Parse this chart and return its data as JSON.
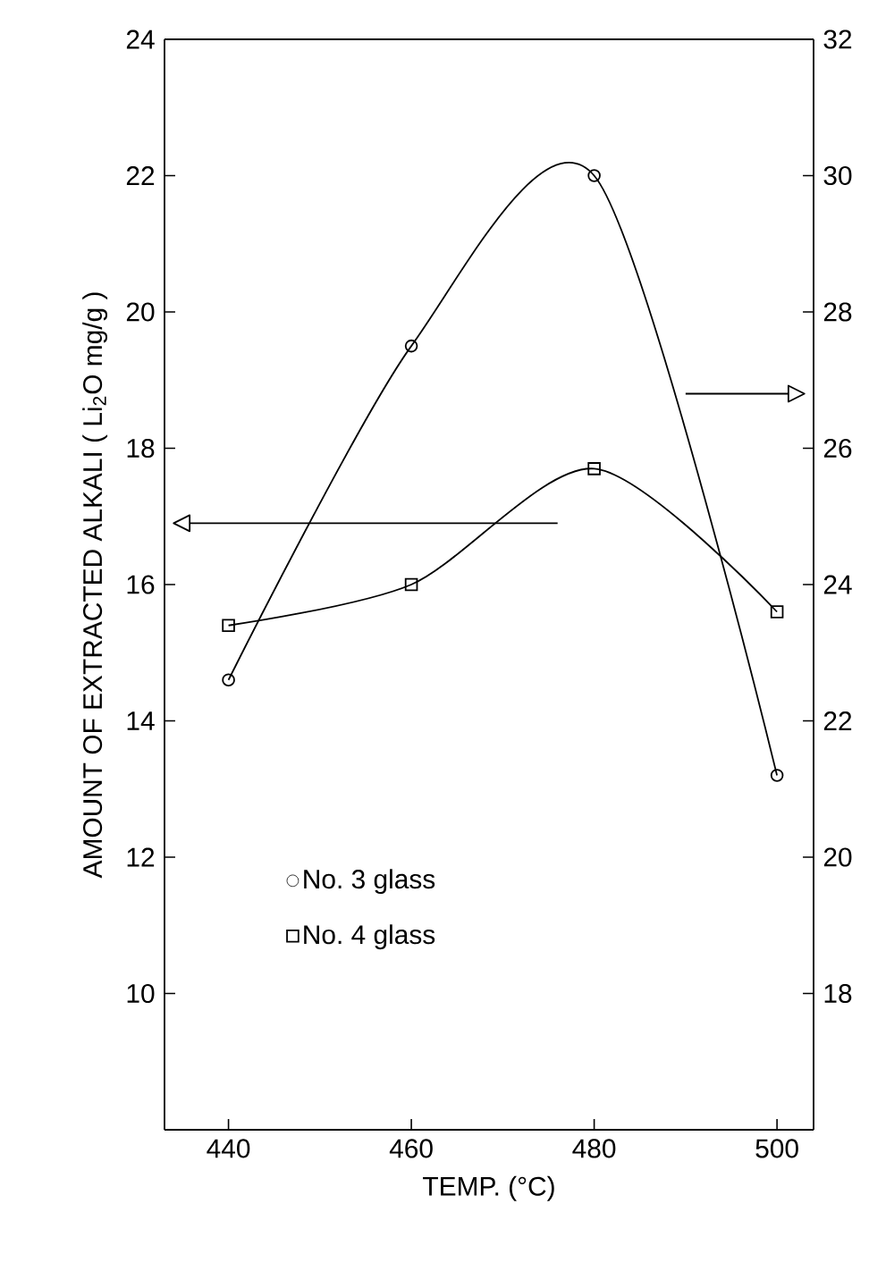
{
  "chart_data": {
    "type": "line",
    "xlabel": "TEMP. (°C)",
    "ylabel": "AMOUNT OF EXTRACTED ALKALI ( Li$_{2}$O mg/g )",
    "x": [
      440,
      460,
      480,
      500
    ],
    "series": [
      {
        "name": "No. 3 glass",
        "color": "#000000",
        "axis": "y2",
        "marker": "circle",
        "values": [
          22.6,
          27.5,
          30.0,
          21.2
        ]
      },
      {
        "name": "No. 4 glass",
        "color": "#000000",
        "marker": "square",
        "values": [
          15.4,
          16.0,
          17.7,
          15.6
        ]
      }
    ],
    "xlim": [
      433,
      504
    ],
    "xticks": [
      440,
      460,
      480,
      500
    ],
    "ylim": [
      8,
      24
    ],
    "yticks": [
      10,
      12,
      14,
      16,
      18,
      20,
      22,
      24
    ],
    "y2lim": [
      16,
      32
    ],
    "y2ticks": [
      18,
      20,
      22,
      24,
      26,
      28,
      30,
      32
    ],
    "legend": "bottom left",
    "grid": false,
    "line_style": "solid"
  }
}
